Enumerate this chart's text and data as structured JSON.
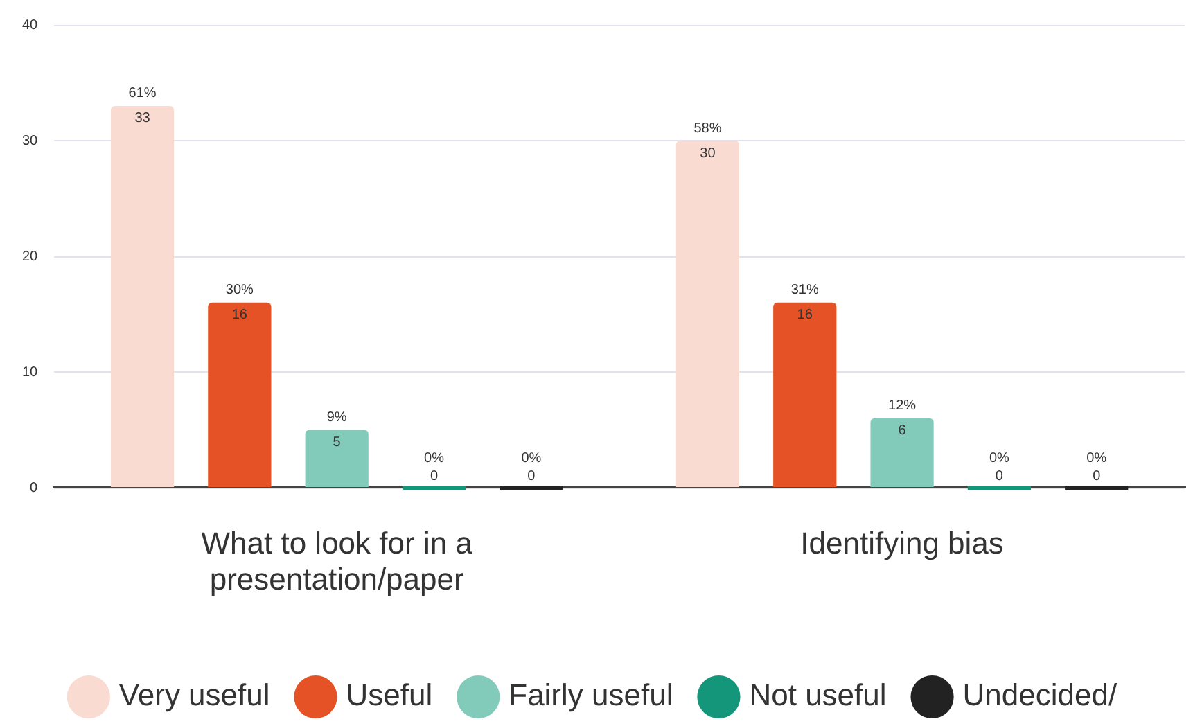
{
  "chart_data": {
    "type": "bar",
    "categories": [
      "What to look for in a presentation/paper",
      "Identifying bias"
    ],
    "series": [
      {
        "name": "Very useful",
        "color": "#f9dbd2",
        "values": [
          33,
          30
        ],
        "value_labels": [
          "61%\n33",
          "58%\n30"
        ]
      },
      {
        "name": "Useful",
        "color": "#e55225",
        "values": [
          16,
          16
        ],
        "value_labels": [
          "30%\n16",
          "31%\n16"
        ]
      },
      {
        "name": "Fairly useful",
        "color": "#82cbbb",
        "values": [
          5,
          6
        ],
        "value_labels": [
          "9%\n5",
          "12%\n6"
        ]
      },
      {
        "name": "Not useful",
        "color": "#14967a",
        "values": [
          0,
          0
        ],
        "value_labels": [
          "0%\n0",
          "0%\n0"
        ]
      },
      {
        "name": "Undecided/",
        "color": "#222222",
        "values": [
          0,
          0
        ],
        "value_labels": [
          "0%\n0",
          "0%\n0"
        ]
      }
    ],
    "ylim": [
      0,
      40
    ],
    "yticks": [
      0,
      10,
      20,
      30,
      40
    ],
    "grid": "y",
    "legend": "bottom"
  }
}
